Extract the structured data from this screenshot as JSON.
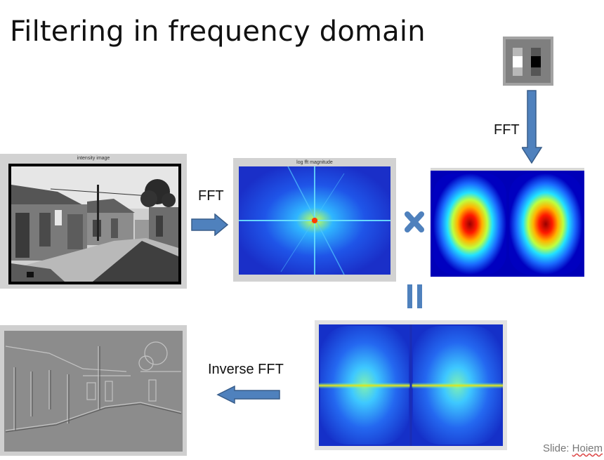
{
  "slide": {
    "title": "Filtering in frequency domain",
    "credit_prefix": "Slide: ",
    "credit_name": "Hoiem"
  },
  "labels": {
    "fft_top": "FFT",
    "fft_middle": "FFT",
    "inverse_fft": "Inverse FFT"
  },
  "panels": {
    "intensity_title": "intensity image",
    "logfft_title": "log fft magnitude"
  },
  "colors": {
    "arrow": "#4f81bd",
    "arrow_border": "#385d8a",
    "spectrum_bg": "#1f3fd8",
    "filter_bg": "#0000b8"
  },
  "icons": {
    "multiply": "multiply-icon",
    "equals": "equals-icon"
  }
}
